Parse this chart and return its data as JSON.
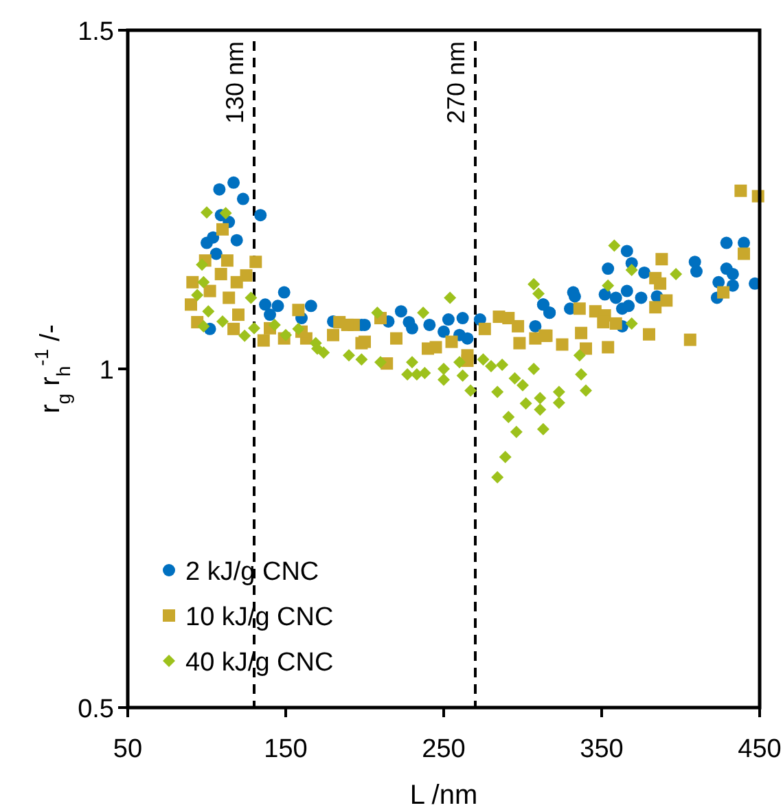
{
  "chart_data": {
    "type": "scatter",
    "xlabel": "L /nm",
    "ylabel": "r$_{g}$ r$_{h}$$^{-1}$ /-",
    "xlim": [
      50,
      450
    ],
    "xticks": [
      50,
      150,
      250,
      350,
      450
    ],
    "ylim": [
      0.5,
      1.5
    ],
    "yticks": [
      0.5,
      1,
      1.5
    ],
    "grid": false,
    "legend": "bottom left",
    "ref_lines": [
      {
        "axis": "x",
        "value": 130,
        "label": "130 nm",
        "color": "#000000",
        "line_style": "dashed"
      },
      {
        "axis": "x",
        "value": 270,
        "label": "270 nm",
        "color": "#000000",
        "line_style": "dashed"
      }
    ],
    "series": [
      {
        "name": "2 kJ/g CNC",
        "color": "#0070c0",
        "marker": "circle",
        "x": [
          108,
          117,
          123,
          134,
          109,
          114,
          119,
          100,
          104,
          106,
          149,
          166,
          137,
          145,
          102,
          198,
          140,
          160,
          180,
          200,
          215,
          230,
          250,
          260,
          223,
          228,
          241,
          253,
          262,
          273,
          313,
          317,
          308,
          265,
          366,
          369,
          354,
          377,
          409,
          410,
          429,
          440,
          429,
          433,
          424,
          433,
          423,
          447,
          332,
          333,
          352,
          359,
          366,
          375,
          385,
          367,
          363,
          330,
          317,
          313,
          363
        ],
        "values": [
          1.265,
          1.275,
          1.251,
          1.227,
          1.227,
          1.217,
          1.19,
          1.186,
          1.194,
          1.17,
          1.113,
          1.093,
          1.095,
          1.093,
          1.059,
          1.065,
          1.08,
          1.075,
          1.07,
          1.065,
          1.07,
          1.06,
          1.055,
          1.05,
          1.085,
          1.069,
          1.065,
          1.073,
          1.075,
          1.073,
          1.095,
          1.083,
          1.063,
          1.045,
          1.174,
          1.156,
          1.148,
          1.142,
          1.158,
          1.144,
          1.186,
          1.186,
          1.148,
          1.14,
          1.128,
          1.123,
          1.105,
          1.126,
          1.113,
          1.107,
          1.11,
          1.105,
          1.115,
          1.105,
          1.107,
          1.093,
          1.089,
          1.089,
          1.083,
          1.095,
          1.063
        ]
      },
      {
        "name": "10 kJ/g CNC",
        "color": "#c9a82c",
        "marker": "square",
        "x": [
          110,
          99,
          113,
          131,
          109,
          125,
          91,
          119,
          90,
          102,
          114,
          158,
          94,
          136,
          184,
          193,
          198,
          117,
          149,
          163,
          120,
          140,
          160,
          180,
          200,
          220,
          240,
          255,
          265,
          285,
          291,
          297,
          298,
          308,
          314,
          276,
          265,
          214,
          189,
          210,
          245,
          438,
          449,
          440,
          388,
          384,
          387,
          391,
          384,
          427,
          336,
          346,
          352,
          351,
          359,
          380,
          406,
          354,
          340,
          337,
          325,
          315
        ],
        "values": [
          1.206,
          1.16,
          1.16,
          1.158,
          1.14,
          1.138,
          1.128,
          1.128,
          1.095,
          1.115,
          1.105,
          1.087,
          1.069,
          1.042,
          1.069,
          1.065,
          1.038,
          1.059,
          1.045,
          1.045,
          1.08,
          1.06,
          1.055,
          1.05,
          1.04,
          1.045,
          1.03,
          1.04,
          1.02,
          1.077,
          1.075,
          1.063,
          1.038,
          1.045,
          1.049,
          1.059,
          1.012,
          1.008,
          1.065,
          1.075,
          1.032,
          1.263,
          1.255,
          1.17,
          1.162,
          1.134,
          1.126,
          1.101,
          1.091,
          1.113,
          1.089,
          1.085,
          1.079,
          1.069,
          1.067,
          1.051,
          1.043,
          1.032,
          1.03,
          1.053,
          1.036,
          1.049
        ]
      },
      {
        "name": "40 kJ/g CNC",
        "color": "#9dc11c",
        "marker": "diamond",
        "x": [
          100,
          112,
          97,
          98,
          94,
          128,
          101,
          98,
          124,
          143,
          174,
          198,
          169,
          158,
          110,
          130,
          150,
          170,
          190,
          210,
          230,
          250,
          260,
          254,
          237,
          208,
          307,
          310,
          267,
          284,
          291,
          296,
          289,
          284,
          302,
          311,
          313,
          311,
          323,
          323,
          307,
          300,
          295,
          287,
          280,
          275,
          262,
          250,
          227,
          233,
          238,
          358,
          369,
          397,
          354,
          369,
          336,
          337,
          340
        ],
        "values": [
          1.231,
          1.23,
          1.154,
          1.128,
          1.109,
          1.105,
          1.085,
          1.063,
          1.049,
          1.065,
          1.024,
          1.014,
          1.038,
          1.059,
          1.07,
          1.06,
          1.05,
          1.03,
          1.02,
          1.01,
          1.01,
          1.0,
          1.01,
          1.105,
          1.083,
          1.083,
          1.125,
          1.111,
          0.968,
          0.966,
          0.929,
          0.907,
          0.87,
          0.84,
          0.949,
          0.957,
          0.911,
          0.94,
          0.966,
          0.95,
          1.0,
          0.976,
          0.986,
          1.006,
          1.004,
          1.014,
          0.99,
          0.984,
          0.992,
          0.992,
          0.994,
          1.182,
          1.146,
          1.14,
          1.123,
          1.067,
          1.02,
          0.992,
          0.968
        ]
      }
    ]
  }
}
